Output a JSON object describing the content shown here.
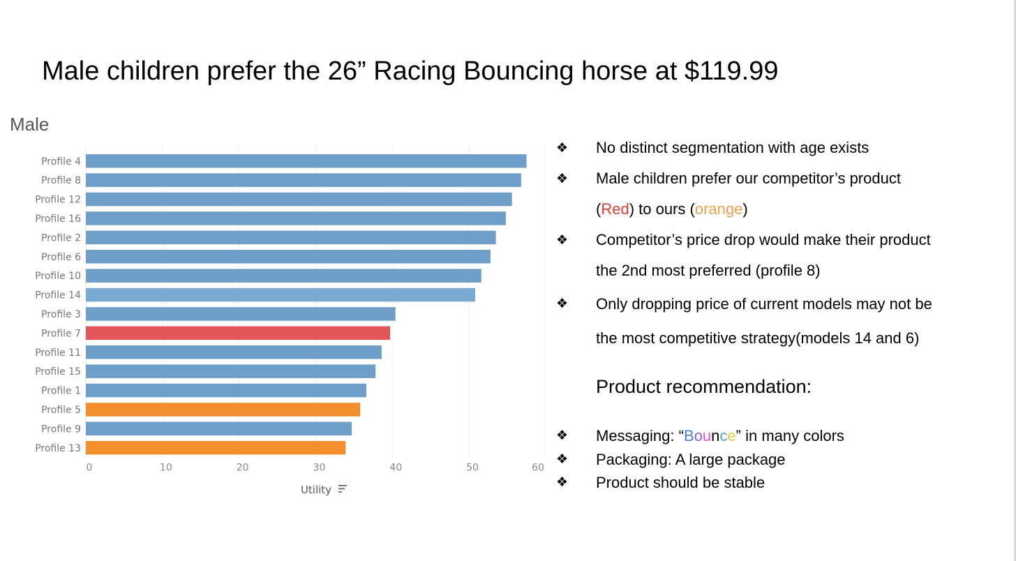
{
  "slide": {
    "title": "Male children prefer the 26” Racing Bouncing horse at $119.99"
  },
  "bullets": [
    {
      "symbol": "❖",
      "text": "No distinct segmentation with age exists"
    },
    {
      "symbol": "❖",
      "text": "Male children prefer our competitor’s product"
    },
    {
      "symbol": "",
      "parts": {
        "open": "(",
        "red": "Red",
        "mid": ") to ours (",
        "orange": "orange",
        "close": ")"
      }
    },
    {
      "symbol": "❖",
      "text": "Competitor’s price drop would make their product"
    },
    {
      "symbol": "",
      "text": "the 2nd most preferred (profile 8)"
    },
    {
      "symbol": "❖",
      "text": "Only dropping price of current models may not be"
    },
    {
      "symbol": "",
      "text": "the most competitive strategy(models 14 and 6)"
    }
  ],
  "recommendation": {
    "title": "Product recommendation:",
    "items": [
      {
        "symbol": "❖",
        "prefix": "Messaging: “",
        "word": [
          "B",
          "o",
          "u",
          "n",
          "c",
          "e"
        ],
        "suffix": "” in many colors"
      },
      {
        "symbol": "❖",
        "text": "Packaging: A large package"
      },
      {
        "symbol": "❖",
        "text": "Product should be stable"
      }
    ]
  },
  "colors": {
    "bar_default": "#6f9fc9",
    "bar_competitor": "#e15759",
    "bar_ours": "#f28e2b",
    "red_word": "#e03a2f",
    "orange_word": "#f0a04b"
  },
  "chart_data": {
    "type": "bar",
    "orientation": "horizontal",
    "title": "Male",
    "xlabel": "Utility",
    "xlim": [
      0,
      60
    ],
    "xticks": [
      0,
      10,
      20,
      30,
      40,
      50,
      60
    ],
    "grid": true,
    "categories": [
      "Profile 4",
      "Profile 8",
      "Profile 12",
      "Profile 16",
      "Profile 2",
      "Profile 6",
      "Profile 10",
      "Profile 14",
      "Profile 3",
      "Profile 7",
      "Profile 11",
      "Profile 15",
      "Profile 1",
      "Profile 5",
      "Profile 9",
      "Profile 13"
    ],
    "values": [
      57.5,
      56.8,
      55.6,
      54.8,
      53.5,
      52.8,
      51.6,
      50.8,
      40.4,
      39.7,
      38.6,
      37.8,
      36.6,
      35.8,
      34.7,
      33.9
    ],
    "bar_colors": [
      "#6f9fc9",
      "#6f9fc9",
      "#6f9fc9",
      "#6f9fc9",
      "#6f9fc9",
      "#6f9fc9",
      "#6f9fc9",
      "#7aaad1",
      "#6f9fc9",
      "#e15759",
      "#6f9fc9",
      "#6f9fc9",
      "#6f9fc9",
      "#f28e2b",
      "#6f9fc9",
      "#f28e2b"
    ]
  }
}
